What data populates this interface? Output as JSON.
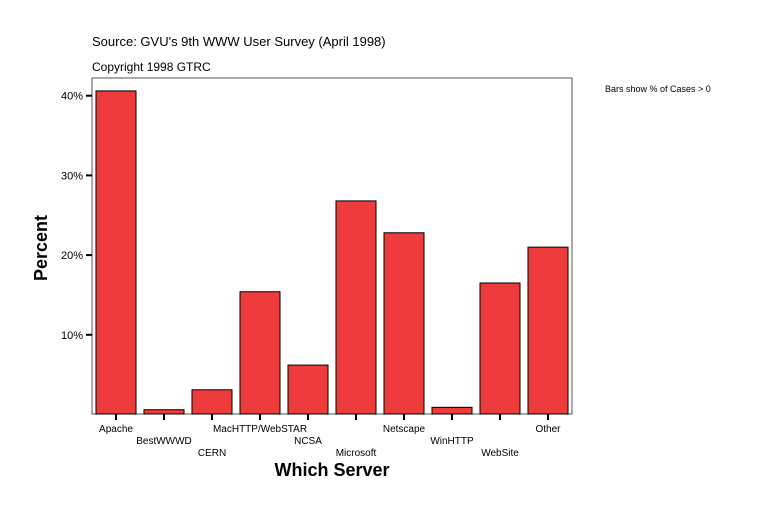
{
  "chart_data": {
    "type": "bar",
    "source": "Source: GVU's 9th WWW User Survey (April 1998)",
    "copyright": "Copyright 1998 GTRC",
    "note": "Bars show % of Cases > 0",
    "xlabel": "Which Server",
    "ylabel": "Percent",
    "categories": [
      "Apache",
      "BestWWWD",
      "CERN",
      "MacHTTP/WebSTAR",
      "NCSA",
      "Microsoft",
      "Netscape",
      "WinHTTP",
      "WebSite",
      "Other"
    ],
    "values": [
      40.6,
      0.6,
      3.1,
      15.4,
      6.2,
      26.8,
      22.8,
      0.9,
      16.5,
      21.0
    ],
    "yticks": [
      10,
      20,
      30,
      40
    ],
    "ytick_labels": [
      "10%",
      "20%",
      "30%",
      "40%"
    ],
    "ylim": [
      0,
      42.3
    ],
    "grid": false,
    "bar_color": "#ee3b3b"
  }
}
